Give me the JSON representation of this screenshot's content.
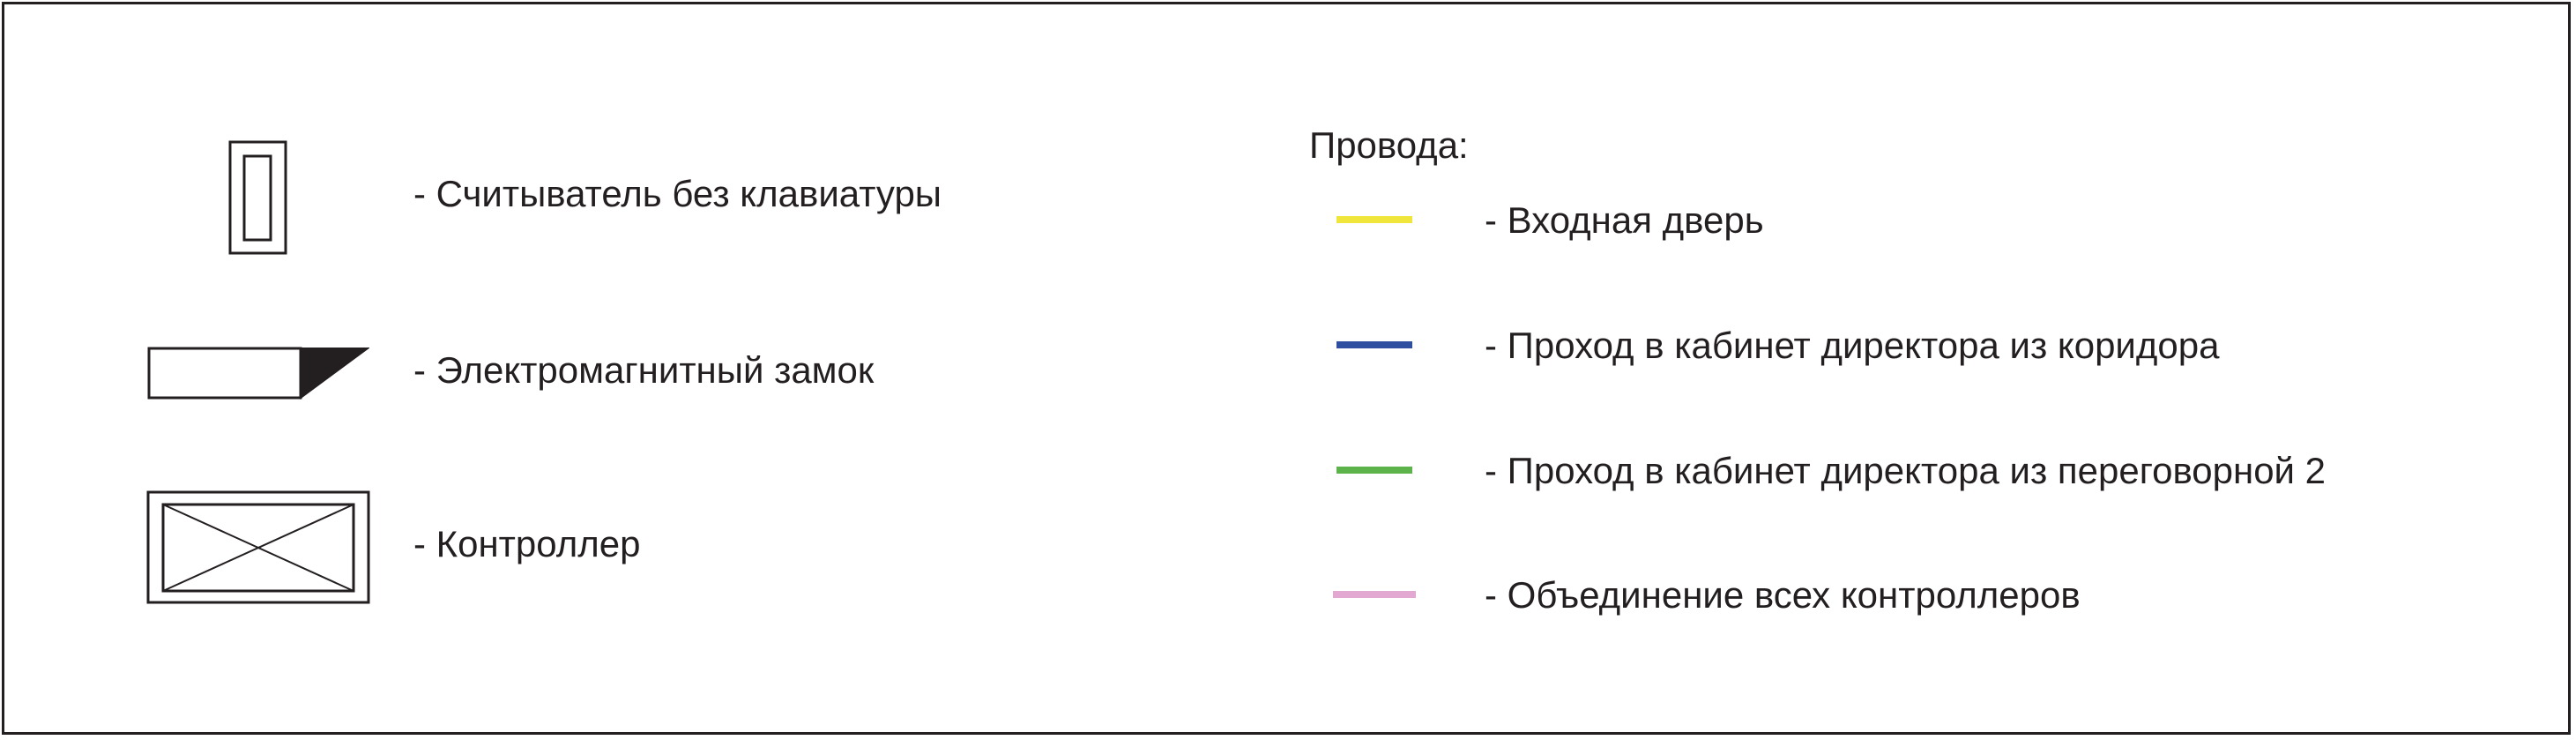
{
  "legend": {
    "symbols": [
      {
        "icon": "reader-icon",
        "label": "- Считыватель без клавиатуры"
      },
      {
        "icon": "electromagnetic-lock-icon",
        "label": "- Электромагнитный замок"
      },
      {
        "icon": "controller-icon",
        "label": "- Контроллер"
      }
    ],
    "wires_title": "Провода:",
    "wires": [
      {
        "color": "#f0e53a",
        "label": "- Входная дверь"
      },
      {
        "color": "#2e4fa0",
        "label": "- Проход в кабинет директора из коридора"
      },
      {
        "color": "#5cb34a",
        "label": "- Проход в кабинет директора из переговорной 2"
      },
      {
        "color": "#e3a8d2",
        "label": "- Объединение всех контроллеров"
      }
    ]
  }
}
